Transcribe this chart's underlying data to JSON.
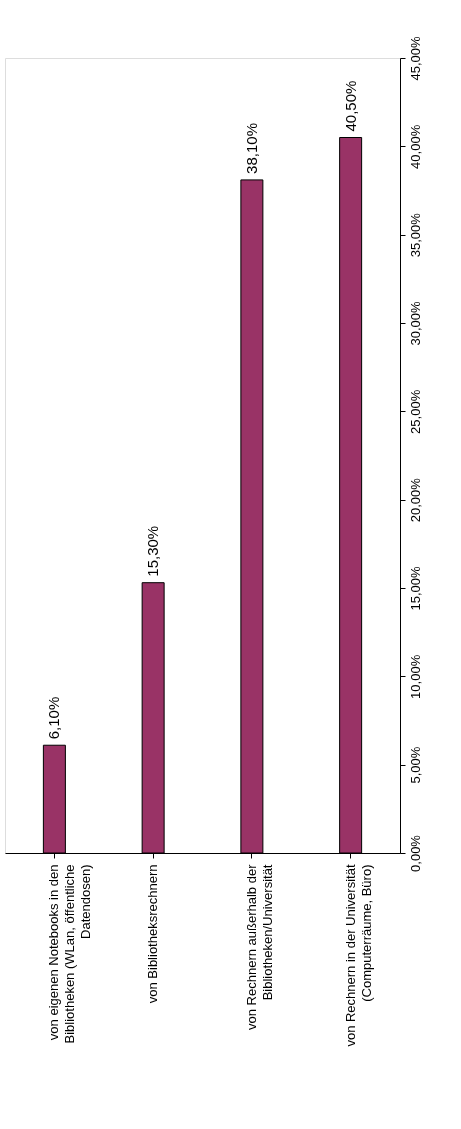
{
  "chart_data": {
    "type": "bar",
    "categories": [
      "von eigenen Notebooks in den Bibliotheken (WLan, öffentliche Datendosen)",
      "von Bibliotheksrechnern",
      "von Rechnern außerhalb der Bibliotheken/Universität",
      "von Rechnern in der Universität (Computerräume, Büro)"
    ],
    "values": [
      6.1,
      15.3,
      38.1,
      40.5
    ],
    "value_labels": [
      "6,10%",
      "15,30%",
      "38,10%",
      "40,50%"
    ],
    "color": "#993366",
    "ylim": [
      0,
      45
    ],
    "yticks": [
      {
        "value": 0,
        "label": "0,00%"
      },
      {
        "value": 5,
        "label": "5,00%"
      },
      {
        "value": 10,
        "label": "10,00%"
      },
      {
        "value": 15,
        "label": "15,00%"
      },
      {
        "value": 20,
        "label": "20,00%"
      },
      {
        "value": 25,
        "label": "25,00%"
      },
      {
        "value": 30,
        "label": "30,00%"
      },
      {
        "value": 35,
        "label": "35,00%"
      },
      {
        "value": 40,
        "label": "40,00%"
      },
      {
        "value": 45,
        "label": "45,00%"
      }
    ],
    "grid": false
  }
}
